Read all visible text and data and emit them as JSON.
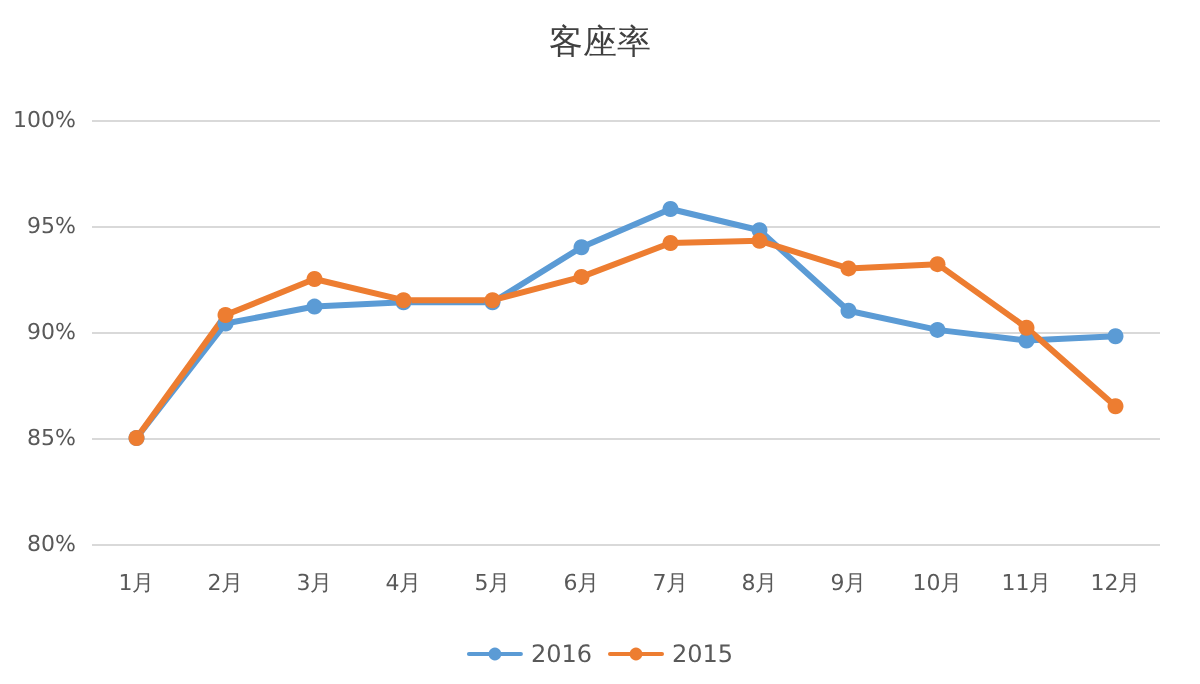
{
  "chart_data": {
    "type": "line",
    "title": "客座率",
    "categories": [
      "1月",
      "2月",
      "3月",
      "4月",
      "5月",
      "6月",
      "7月",
      "8月",
      "9月",
      "10月",
      "11月",
      "12月"
    ],
    "series": [
      {
        "name": "2016",
        "color": "#5b9bd5",
        "values": [
          85.0,
          90.4,
          91.2,
          91.4,
          91.4,
          94.0,
          95.8,
          94.8,
          91.0,
          90.1,
          89.6,
          89.8
        ]
      },
      {
        "name": "2015",
        "color": "#ed7d31",
        "values": [
          85.0,
          90.8,
          92.5,
          91.5,
          91.5,
          92.6,
          94.2,
          94.3,
          93.0,
          93.2,
          90.2,
          86.5
        ]
      }
    ],
    "ylim": [
      80,
      100
    ],
    "yticks": [
      {
        "value": 80,
        "label": "80%"
      },
      {
        "value": 85,
        "label": "85%"
      },
      {
        "value": 90,
        "label": "90%"
      },
      {
        "value": 95,
        "label": "95%"
      },
      {
        "value": 100,
        "label": "100%"
      }
    ],
    "grid": "y",
    "legend": "bottom",
    "marker": "circle",
    "line_style": "solid"
  }
}
